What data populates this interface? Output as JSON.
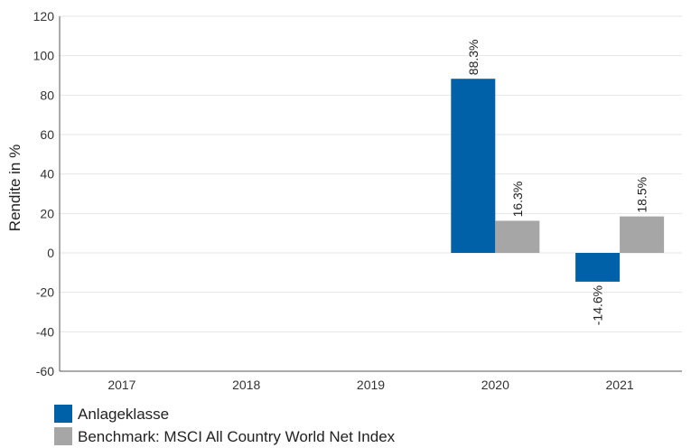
{
  "chart_data": {
    "type": "bar",
    "title": "",
    "xlabel": "",
    "ylabel": "Rendite in %",
    "categories": [
      "2017",
      "2018",
      "2019",
      "2020",
      "2021"
    ],
    "series": [
      {
        "name": "Anlageklasse",
        "values": [
          null,
          null,
          null,
          88.3,
          -14.6
        ],
        "labels": [
          "",
          "",
          "",
          "88.3%",
          "-14.6%"
        ],
        "color": "#0061a8"
      },
      {
        "name": "Benchmark: MSCI All Country World Net Index",
        "values": [
          null,
          null,
          null,
          16.3,
          18.5
        ],
        "labels": [
          "",
          "",
          "",
          "16.3%",
          "18.5%"
        ],
        "color": "#a6a6a6"
      }
    ],
    "ylim": [
      -60,
      120
    ],
    "yticks": [
      120,
      100,
      80,
      60,
      40,
      20,
      0,
      -20,
      -40,
      -60
    ],
    "grid": true,
    "legend": "bottom-left"
  }
}
